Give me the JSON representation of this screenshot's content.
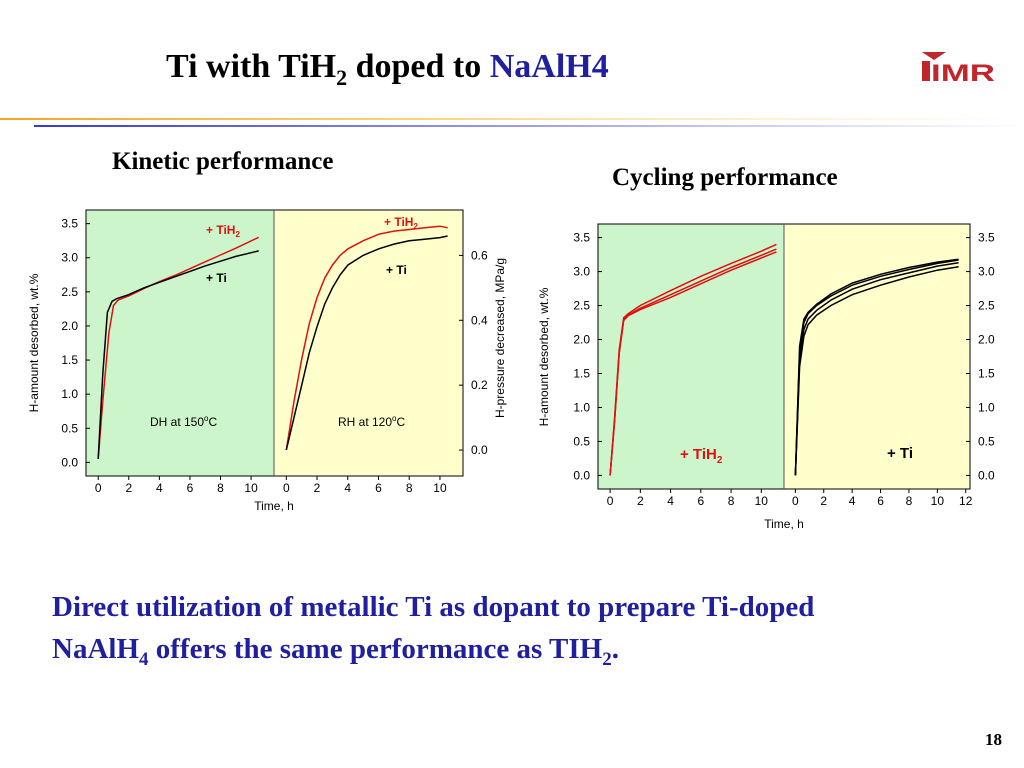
{
  "slide": {
    "title_main": "Ti with TiH",
    "title_sub": "2",
    "title_mid": " doped to ",
    "title_end": "NaAlH4",
    "logo_text": "IMR",
    "left_heading": "Kinetic performance",
    "right_heading": "Cycling performance",
    "conclusion_line1": "Direct utilization of metallic Ti as dopant to prepare Ti-doped",
    "conclusion_l2a": "NaAlH",
    "conclusion_l2sub": "4",
    "conclusion_l2b": " offers the same performance as TIH",
    "conclusion_l2sub2": "2",
    "conclusion_l2c": ".",
    "page_number": "18"
  },
  "colors": {
    "title_blue": "#1f1fa0",
    "panel_green": "#ccf5cc",
    "panel_yellow": "#ffffcc",
    "series_red": "#e01010",
    "series_black": "#000000"
  },
  "chart_data": [
    {
      "type": "line",
      "heading": "Kinetic performance",
      "xlabel": "Time, h",
      "ylabel": "H-amount desorbed, wt.%",
      "ylabel_right": "H-pressure decreased, MPa/g",
      "panels": [
        {
          "label_main": "DH at 150",
          "label_sup": "o",
          "label_end": "C",
          "xlim": [
            -0.8,
            11.5
          ],
          "xticks": [
            "0",
            "2",
            "4",
            "6",
            "8",
            "10"
          ],
          "ylim": [
            -0.2,
            3.7
          ],
          "yticks": [
            "0.0",
            "0.5",
            "1.0",
            "1.5",
            "2.0",
            "2.5",
            "3.0",
            "3.5"
          ],
          "series": [
            {
              "name": "+ TiH2",
              "color": "#e01010",
              "x": [
                0,
                0.3,
                0.7,
                1.0,
                1.3,
                2,
                3,
                4,
                5,
                6,
                7,
                8,
                9,
                10.5
              ],
              "y": [
                0.05,
                0.9,
                1.9,
                2.3,
                2.38,
                2.44,
                2.55,
                2.65,
                2.74,
                2.84,
                2.94,
                3.04,
                3.14,
                3.3
              ]
            },
            {
              "name": "+ Ti",
              "color": "#000000",
              "x": [
                0,
                0.3,
                0.6,
                0.9,
                1.2,
                2,
                3,
                4,
                5,
                6,
                7,
                8,
                9,
                10.5
              ],
              "y": [
                0.05,
                1.3,
                2.2,
                2.36,
                2.4,
                2.46,
                2.56,
                2.64,
                2.72,
                2.8,
                2.88,
                2.95,
                3.02,
                3.1
              ]
            }
          ]
        },
        {
          "label_main": "RH at 120",
          "label_sup": "o",
          "label_end": "C",
          "xlim": [
            -0.8,
            11.5
          ],
          "xticks": [
            "0",
            "2",
            "4",
            "6",
            "8",
            "10"
          ],
          "ylim": [
            -0.08,
            0.74
          ],
          "yticks": [
            "0.0",
            "0.2",
            "0.4",
            "0.6"
          ],
          "series": [
            {
              "name": "+ TiH2",
              "color": "#e01010",
              "x": [
                0,
                0.5,
                1,
                1.5,
                2,
                2.5,
                3,
                3.5,
                4,
                5,
                6,
                7,
                8,
                9,
                10,
                10.5
              ],
              "y": [
                0.0,
                0.15,
                0.28,
                0.39,
                0.47,
                0.53,
                0.57,
                0.6,
                0.62,
                0.645,
                0.665,
                0.675,
                0.68,
                0.685,
                0.69,
                0.685
              ]
            },
            {
              "name": "+ Ti",
              "color": "#000000",
              "x": [
                0,
                0.5,
                1,
                1.5,
                2,
                2.5,
                3,
                3.5,
                4,
                5,
                6,
                7,
                8,
                9,
                10,
                10.5
              ],
              "y": [
                0.0,
                0.1,
                0.2,
                0.3,
                0.38,
                0.45,
                0.5,
                0.54,
                0.57,
                0.6,
                0.62,
                0.635,
                0.645,
                0.65,
                0.655,
                0.66
              ]
            }
          ]
        }
      ],
      "labels": [
        {
          "main": "+ TiH",
          "sub": "2",
          "color": "#e01010"
        },
        {
          "main": "+ Ti",
          "sub": "",
          "color": "#000000"
        },
        {
          "main": "+ TiH",
          "sub": "2",
          "color": "#e01010"
        },
        {
          "main": "+ Ti",
          "sub": "",
          "color": "#000000"
        }
      ]
    },
    {
      "type": "line",
      "heading": "Cycling performance",
      "xlabel": "Time, h",
      "ylabel": "H-amount desorbed, wt.%",
      "panels": [
        {
          "xlim": [
            -0.8,
            11.5
          ],
          "xticks": [
            "0",
            "2",
            "4",
            "6",
            "8",
            "10"
          ],
          "ylim": [
            -0.2,
            3.7
          ],
          "yticks": [
            "0.0",
            "0.5",
            "1.0",
            "1.5",
            "2.0",
            "2.5",
            "3.0",
            "3.5"
          ],
          "label_main": "+ TiH",
          "label_sub": "2",
          "series": [
            {
              "name": "+ TiH2 cycle",
              "color": "#e01010",
              "x": [
                0,
                0.3,
                0.6,
                0.9,
                1.2,
                2,
                4,
                6,
                8,
                10,
                11
              ],
              "y": [
                0.0,
                0.8,
                1.8,
                2.3,
                2.36,
                2.46,
                2.66,
                2.86,
                3.06,
                3.24,
                3.33
              ]
            },
            {
              "name": "+ TiH2 cycle",
              "color": "#e01010",
              "x": [
                0,
                0.3,
                0.6,
                0.9,
                1.2,
                2,
                4,
                6,
                8,
                10,
                11
              ],
              "y": [
                0.0,
                0.85,
                1.85,
                2.32,
                2.38,
                2.5,
                2.72,
                2.93,
                3.12,
                3.3,
                3.4
              ]
            },
            {
              "name": "+ TiH2 cycle",
              "color": "#e01010",
              "x": [
                0,
                0.3,
                0.6,
                0.9,
                1.2,
                2,
                4,
                6,
                8,
                10,
                11
              ],
              "y": [
                0.0,
                0.8,
                1.8,
                2.28,
                2.35,
                2.44,
                2.62,
                2.82,
                3.02,
                3.2,
                3.29
              ]
            }
          ]
        },
        {
          "xlim": [
            -0.8,
            12.3
          ],
          "xticks": [
            "0",
            "2",
            "4",
            "6",
            "8",
            "10",
            "12"
          ],
          "ylim": [
            -0.2,
            3.7
          ],
          "yticks": [
            "0.0",
            "0.5",
            "1.0",
            "1.5",
            "2.0",
            "2.5",
            "3.0",
            "3.5"
          ],
          "label_main": "+ Ti",
          "label_sub": "",
          "series": [
            {
              "name": "+ Ti cycle",
              "color": "#000000",
              "x": [
                0,
                0.3,
                0.6,
                0.9,
                1.5,
                2.5,
                4,
                6,
                8,
                10,
                11.5
              ],
              "y": [
                0.0,
                1.8,
                2.25,
                2.38,
                2.5,
                2.64,
                2.8,
                2.93,
                3.03,
                3.12,
                3.17
              ]
            },
            {
              "name": "+ Ti cycle",
              "color": "#000000",
              "x": [
                0,
                0.3,
                0.6,
                0.9,
                1.5,
                2.5,
                4,
                6,
                8,
                10,
                11.5
              ],
              "y": [
                0.0,
                1.7,
                2.15,
                2.3,
                2.43,
                2.58,
                2.74,
                2.88,
                2.98,
                3.08,
                3.13
              ]
            },
            {
              "name": "+ Ti cycle",
              "color": "#000000",
              "x": [
                0,
                0.3,
                0.6,
                0.9,
                1.5,
                2.5,
                4,
                6,
                8,
                10,
                11.5
              ],
              "y": [
                0.0,
                1.6,
                2.05,
                2.22,
                2.36,
                2.5,
                2.66,
                2.8,
                2.92,
                3.02,
                3.07
              ]
            },
            {
              "name": "+ Ti cycle",
              "color": "#000000",
              "x": [
                0,
                0.3,
                0.6,
                0.9,
                1.5,
                2.5,
                4,
                6,
                8,
                10,
                11.5
              ],
              "y": [
                0.0,
                1.9,
                2.3,
                2.4,
                2.52,
                2.67,
                2.83,
                2.96,
                3.06,
                3.14,
                3.18
              ]
            }
          ]
        }
      ]
    }
  ]
}
